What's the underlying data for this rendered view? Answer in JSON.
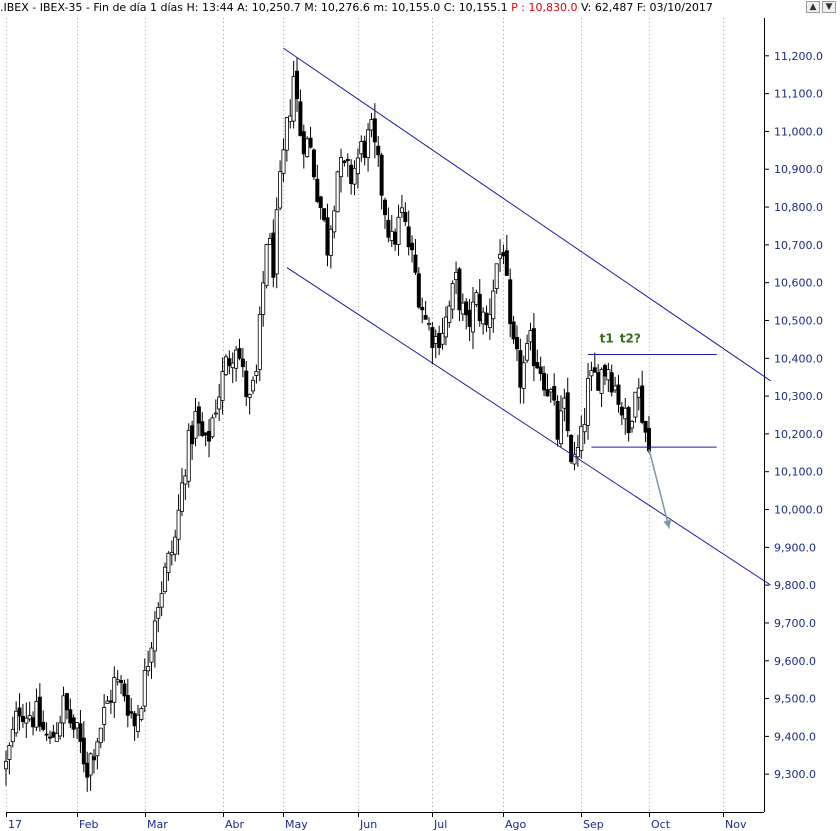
{
  "header": {
    "symbol": ".IBEX - IBEX-35 - Fin de día 1 días",
    "h_label": "H:",
    "h_value": "13:44",
    "a_label": "A:",
    "a_value": "10,250.7",
    "m_label": "M:",
    "m_value": "10,276.6",
    "min_label": "m:",
    "min_value": "10,155.0",
    "c_label": "C:",
    "c_value": "10,155.1",
    "p_label": "P :",
    "p_value": "10,830.0",
    "v_label": "V:",
    "v_value": "62,487",
    "f_label": "F:",
    "f_value": "03/10/2017"
  },
  "window_buttons": [
    "up-icon",
    "down-icon"
  ],
  "chart_data": {
    "type": "candlestick",
    "instrument": "IBEX-35",
    "timeframe": "Fin de día 1 días",
    "ylim": [
      9200,
      11300
    ],
    "y_ticks": [
      9300,
      9400,
      9500,
      9600,
      9700,
      9800,
      9900,
      10000,
      10100,
      10200,
      10300,
      10400,
      10500,
      10600,
      10700,
      10800,
      10900,
      11000,
      11100,
      11200
    ],
    "y_tick_labels": [
      "9,300.0",
      "9,400.0",
      "9,500.0",
      "9,600.0",
      "9,700.0",
      "9,800.0",
      "9,900.0",
      "10,000.0",
      "10,100.0",
      "10,200.0",
      "10,300.0",
      "10,400.0",
      "10,500.0",
      "10,600.0",
      "10,700.0",
      "10,800.0",
      "10,900.0",
      "11,000.0",
      "11,100.0",
      "11,200.0"
    ],
    "x_labels": [
      {
        "label": "17",
        "day": 0
      },
      {
        "label": "Feb",
        "day": 21
      },
      {
        "label": "Mar",
        "day": 41
      },
      {
        "label": "Abr",
        "day": 64
      },
      {
        "label": "May",
        "day": 82
      },
      {
        "label": "Jun",
        "day": 104
      },
      {
        "label": "Jul",
        "day": 126
      },
      {
        "label": "Ago",
        "day": 147
      },
      {
        "label": "Sep",
        "day": 170
      },
      {
        "label": "Oct",
        "day": 190
      },
      {
        "label": "Nov",
        "day": 212
      }
    ],
    "x_range_days": [
      0,
      224
    ],
    "price_path": [
      {
        "day": 0,
        "price": 9320
      },
      {
        "day": 4,
        "price": 9480
      },
      {
        "day": 9,
        "price": 9450
      },
      {
        "day": 13,
        "price": 9380
      },
      {
        "day": 17,
        "price": 9480
      },
      {
        "day": 21,
        "price": 9400
      },
      {
        "day": 24,
        "price": 9320
      },
      {
        "day": 28,
        "price": 9430
      },
      {
        "day": 32,
        "price": 9540
      },
      {
        "day": 35,
        "price": 9520
      },
      {
        "day": 38,
        "price": 9430
      },
      {
        "day": 41,
        "price": 9550
      },
      {
        "day": 44,
        "price": 9730
      },
      {
        "day": 47,
        "price": 9830
      },
      {
        "day": 50,
        "price": 9920
      },
      {
        "day": 53,
        "price": 10130
      },
      {
        "day": 56,
        "price": 10240
      },
      {
        "day": 59,
        "price": 10160
      },
      {
        "day": 62,
        "price": 10280
      },
      {
        "day": 65,
        "price": 10380
      },
      {
        "day": 68,
        "price": 10450
      },
      {
        "day": 70,
        "price": 10350
      },
      {
        "day": 72,
        "price": 10280
      },
      {
        "day": 74,
        "price": 10350
      },
      {
        "day": 77,
        "price": 10720
      },
      {
        "day": 79,
        "price": 10650
      },
      {
        "day": 81,
        "price": 10850
      },
      {
        "day": 83,
        "price": 11000
      },
      {
        "day": 85,
        "price": 11150
      },
      {
        "day": 87,
        "price": 11000
      },
      {
        "day": 90,
        "price": 10950
      },
      {
        "day": 93,
        "price": 10800
      },
      {
        "day": 95,
        "price": 10700
      },
      {
        "day": 98,
        "price": 10900
      },
      {
        "day": 102,
        "price": 10880
      },
      {
        "day": 105,
        "price": 10950
      },
      {
        "day": 108,
        "price": 10990
      },
      {
        "day": 111,
        "price": 10850
      },
      {
        "day": 114,
        "price": 10700
      },
      {
        "day": 117,
        "price": 10780
      },
      {
        "day": 121,
        "price": 10620
      },
      {
        "day": 124,
        "price": 10500
      },
      {
        "day": 127,
        "price": 10450
      },
      {
        "day": 130,
        "price": 10500
      },
      {
        "day": 133,
        "price": 10600
      },
      {
        "day": 136,
        "price": 10480
      },
      {
        "day": 139,
        "price": 10550
      },
      {
        "day": 142,
        "price": 10480
      },
      {
        "day": 145,
        "price": 10650
      },
      {
        "day": 147,
        "price": 10700
      },
      {
        "day": 149,
        "price": 10450
      },
      {
        "day": 152,
        "price": 10350
      },
      {
        "day": 155,
        "price": 10430
      },
      {
        "day": 158,
        "price": 10380
      },
      {
        "day": 161,
        "price": 10300
      },
      {
        "day": 163,
        "price": 10200
      },
      {
        "day": 165,
        "price": 10260
      },
      {
        "day": 167,
        "price": 10150
      },
      {
        "day": 168,
        "price": 10120
      },
      {
        "day": 170,
        "price": 10180
      },
      {
        "day": 172,
        "price": 10320
      },
      {
        "day": 175,
        "price": 10360
      },
      {
        "day": 178,
        "price": 10380
      },
      {
        "day": 181,
        "price": 10300
      },
      {
        "day": 184,
        "price": 10200
      },
      {
        "day": 186,
        "price": 10350
      },
      {
        "day": 188,
        "price": 10260
      },
      {
        "day": 190,
        "price": 10155
      }
    ],
    "trendlines": [
      {
        "from": {
          "day": 82,
          "price": 11220
        },
        "to": {
          "day": 226,
          "price": 10340
        }
      },
      {
        "from": {
          "day": 83,
          "price": 10640
        },
        "to": {
          "day": 226,
          "price": 9800
        }
      },
      {
        "from": {
          "day": 172,
          "price": 10410
        },
        "to": {
          "day": 210,
          "price": 10410
        }
      },
      {
        "from": {
          "day": 173,
          "price": 10165
        },
        "to": {
          "day": 210,
          "price": 10165
        }
      }
    ],
    "projection_arrow": {
      "from": {
        "day": 190,
        "price": 10160
      },
      "to": {
        "day": 196,
        "price": 9950
      }
    },
    "annotations": [
      {
        "text": "t1",
        "day": 177.5,
        "price": 10455
      },
      {
        "text": "t2?",
        "day": 184.5,
        "price": 10455
      }
    ],
    "colors": {
      "candle": "#000000",
      "channel": "#1a1aa8",
      "axis_text": "#1a2a8a",
      "annotation": "#3a6b1e",
      "arrow": "#7b98a8",
      "grid": "#a8a8a8"
    },
    "grid": "vertical-dotted"
  }
}
